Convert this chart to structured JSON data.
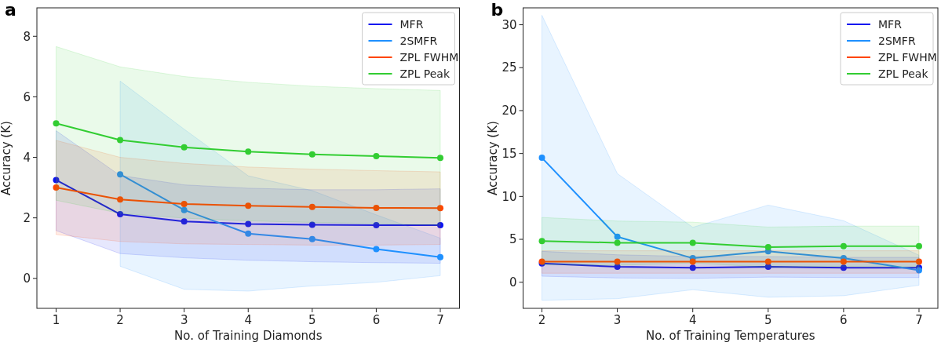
{
  "chart_data": [
    {
      "type": "line",
      "title": "a",
      "xlabel": "No. of Training Diamonds",
      "ylabel": "Accuracy (K)",
      "x": [
        1,
        2,
        3,
        4,
        5,
        6,
        7
      ],
      "xlim": [
        0.7,
        7.3
      ],
      "ylim": [
        -0.99,
        8.94
      ],
      "xticks": [
        1,
        2,
        3,
        4,
        5,
        6,
        7
      ],
      "yticks": [
        0,
        2,
        4,
        6,
        8
      ],
      "legend": "top right",
      "grid": false,
      "marker": "circle",
      "line_style": "solid",
      "series": [
        {
          "name": "MFR",
          "color": "#0a14f0",
          "values": [
            3.25,
            2.12,
            1.88,
            1.8,
            1.77,
            1.76,
            1.76
          ],
          "lower": [
            1.58,
            0.82,
            0.68,
            0.6,
            0.55,
            0.52,
            0.5
          ],
          "upper": [
            4.88,
            3.4,
            3.09,
            2.98,
            2.93,
            2.93,
            2.96
          ]
        },
        {
          "name": "2SMFR",
          "color": "#1e90ff",
          "x": [
            2,
            3,
            4,
            5,
            6,
            7
          ],
          "values": [
            3.44,
            2.26,
            1.48,
            1.3,
            0.97,
            0.7
          ],
          "lower": [
            0.4,
            -0.36,
            -0.42,
            -0.25,
            -0.13,
            0.09
          ],
          "upper": [
            6.52,
            4.93,
            3.39,
            2.9,
            2.1,
            1.33
          ]
        },
        {
          "name": "ZPL FWHM",
          "color": "#ff4500",
          "values": [
            3.0,
            2.61,
            2.46,
            2.4,
            2.36,
            2.33,
            2.32
          ],
          "lower": [
            1.45,
            1.22,
            1.14,
            1.12,
            1.1,
            1.1,
            1.12
          ],
          "upper": [
            4.56,
            4.0,
            3.8,
            3.68,
            3.61,
            3.56,
            3.52
          ]
        },
        {
          "name": "ZPL Peak",
          "color": "#32cd32",
          "values": [
            5.12,
            4.57,
            4.33,
            4.19,
            4.1,
            4.04,
            3.98
          ],
          "lower": [
            2.58,
            2.15,
            1.99,
            1.9,
            1.85,
            1.81,
            1.75
          ],
          "upper": [
            7.66,
            6.99,
            6.67,
            6.48,
            6.35,
            6.27,
            6.21
          ]
        }
      ]
    },
    {
      "type": "line",
      "title": "b",
      "xlabel": "No. of Training Temperatures",
      "ylabel": "Accuracy (K)",
      "x": [
        2,
        3,
        4,
        5,
        6,
        7
      ],
      "xlim": [
        1.75,
        7.25
      ],
      "ylim": [
        -3.04,
        31.97
      ],
      "xticks": [
        2,
        3,
        4,
        5,
        6,
        7
      ],
      "yticks": [
        0,
        5,
        10,
        15,
        20,
        25,
        30
      ],
      "legend": "top right",
      "grid": false,
      "marker": "circle",
      "line_style": "solid",
      "series": [
        {
          "name": "MFR",
          "color": "#0a14f0",
          "values": [
            2.2,
            1.8,
            1.7,
            1.8,
            1.7,
            1.7
          ],
          "lower": [
            0.7,
            0.5,
            0.45,
            0.6,
            0.55,
            0.55
          ],
          "upper": [
            3.6,
            3.2,
            3.0,
            3.0,
            2.9,
            2.9
          ]
        },
        {
          "name": "2SMFR",
          "color": "#1e90ff",
          "values": [
            14.5,
            5.3,
            2.8,
            3.6,
            2.8,
            1.4
          ],
          "lower": [
            -2.1,
            -1.92,
            -0.87,
            -1.75,
            -1.57,
            -0.35
          ],
          "upper": [
            31.1,
            12.66,
            6.4,
            8.99,
            7.17,
            3.15
          ]
        },
        {
          "name": "ZPL FWHM",
          "color": "#ff4500",
          "values": [
            2.4,
            2.4,
            2.4,
            2.4,
            2.4,
            2.4
          ],
          "lower": [
            1.05,
            1.05,
            1.05,
            1.05,
            1.05,
            1.05
          ],
          "upper": [
            3.67,
            3.67,
            3.67,
            3.67,
            3.67,
            3.67
          ]
        },
        {
          "name": "ZPL Peak",
          "color": "#32cd32",
          "values": [
            4.8,
            4.6,
            4.6,
            4.1,
            4.2,
            4.2
          ],
          "lower": [
            2.03,
            1.97,
            2.24,
            1.75,
            1.86,
            1.78
          ],
          "upper": [
            7.55,
            7.13,
            7.0,
            6.43,
            6.54,
            6.54
          ]
        }
      ]
    }
  ]
}
